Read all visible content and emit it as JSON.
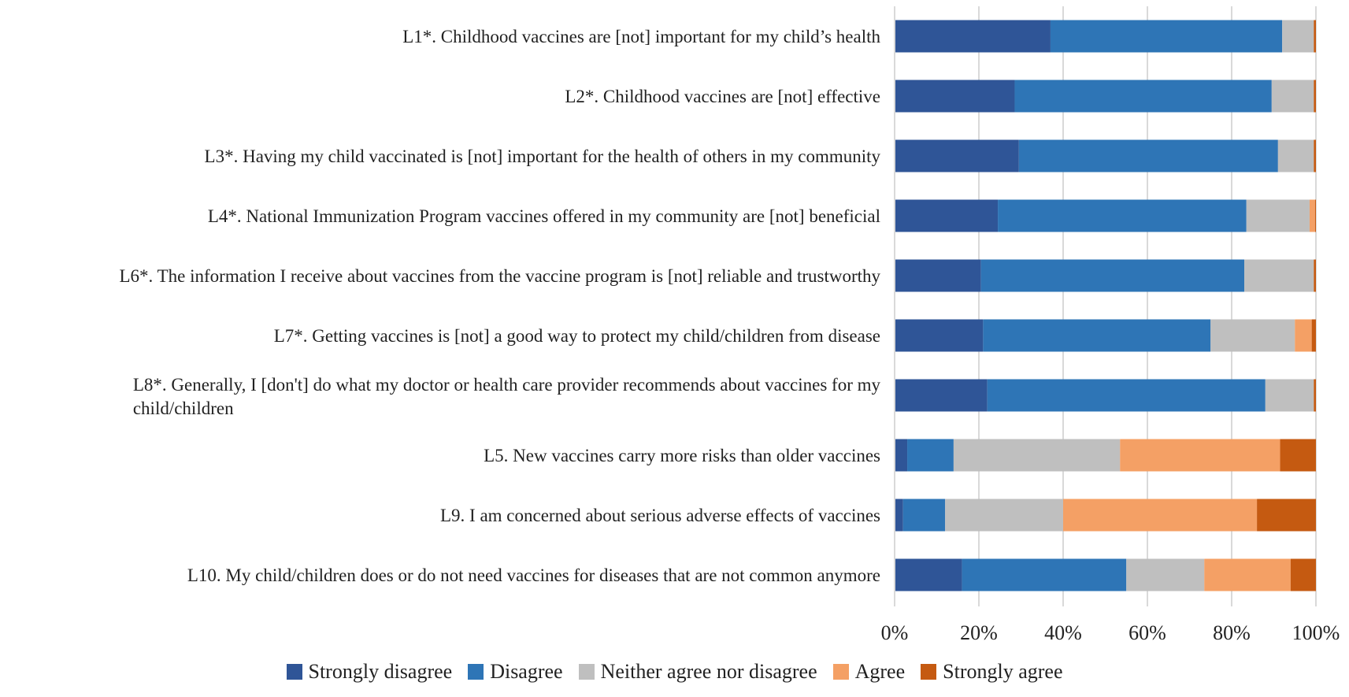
{
  "chart_data": {
    "type": "bar",
    "orientation": "horizontal",
    "stacked": "percent",
    "title": "",
    "xlabel": "",
    "ylabel": "",
    "xlim": [
      0,
      100
    ],
    "x_ticks": [
      "0%",
      "20%",
      "40%",
      "60%",
      "80%",
      "100%"
    ],
    "grid": true,
    "legend_position": "bottom",
    "categories": [
      [
        "L1*. Childhood vaccines are [not] important for my child’s health"
      ],
      [
        "L2*. Childhood vaccines are  [not] effective"
      ],
      [
        "L3*. Having my child vaccinated is  [not] important for the health of others in my community"
      ],
      [
        "L4*. National Immunization Program vaccines offered  in my community are  [not] beneficial"
      ],
      [
        "L6*. The information I receive about vaccines from the vaccine program is  [not] reliable and trustworthy"
      ],
      [
        "L7*. Getting vaccines is [not] a good way to protect my child/children from disease"
      ],
      [
        "L8*. Generally, I [don't] do what my doctor or health care provider recommends about vaccines for my",
        "child/children"
      ],
      [
        "L5. New vaccines carry more risks than older vaccines"
      ],
      [
        "L9. I am concerned about serious adverse effects of vaccines"
      ],
      [
        "L10. My child/children does or do not need vaccines for diseases that are not common anymore"
      ]
    ],
    "series": [
      {
        "name": "Strongly disagree",
        "color": "#2f5597",
        "values": [
          37,
          28.5,
          29.5,
          24.5,
          20.5,
          21,
          22,
          3,
          2,
          16
        ]
      },
      {
        "name": "Disagree",
        "color": "#2e75b6",
        "values": [
          55,
          61,
          61.5,
          59,
          62.5,
          54,
          66,
          11,
          10,
          39
        ]
      },
      {
        "name": "Neither agree nor disagree",
        "color": "#bfbfbf",
        "values": [
          7.5,
          10,
          8.5,
          15,
          16.5,
          20,
          11.5,
          39.5,
          28,
          18.5
        ]
      },
      {
        "name": "Agree",
        "color": "#f4a065",
        "values": [
          0,
          0,
          0,
          1.3,
          0,
          4,
          0,
          38,
          46,
          20.5
        ]
      },
      {
        "name": "Strongly agree",
        "color": "#c55a11",
        "values": [
          0.5,
          0.5,
          0.5,
          0.2,
          0.5,
          1,
          0.5,
          8.5,
          14,
          6
        ]
      }
    ]
  }
}
